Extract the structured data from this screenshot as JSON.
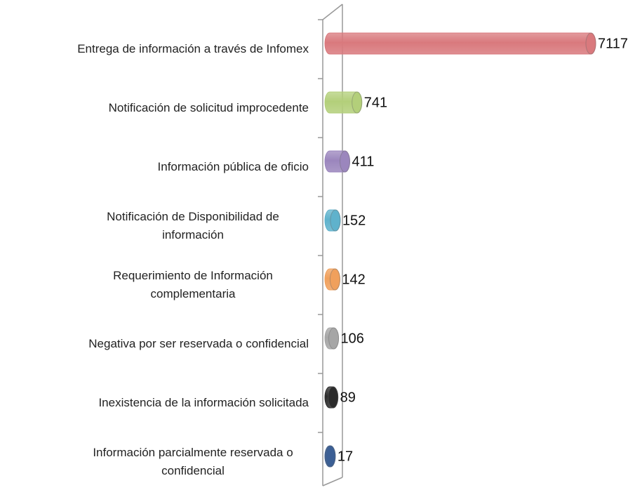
{
  "chart_data": {
    "type": "bar",
    "orientation": "horizontal",
    "style": "cylinder",
    "categories": [
      "Entrega de información a través de Infomex",
      "Notificación de solicitud improcedente",
      "Información pública de oficio",
      "Notificación de Disponibilidad de información",
      "Requerimiento de Información complementaria",
      "Negativa por ser reservada o confidencial",
      "Inexistencia de la información solicitada",
      "Información parcialmente reservada o confidencial"
    ],
    "values": [
      7117,
      741,
      411,
      152,
      142,
      106,
      89,
      17
    ],
    "colors": [
      "#d9797d",
      "#b3cf7a",
      "#9b86bd",
      "#5fb2cc",
      "#f0a05c",
      "#a6a6a6",
      "#2b2b2b",
      "#3b5f95"
    ]
  }
}
